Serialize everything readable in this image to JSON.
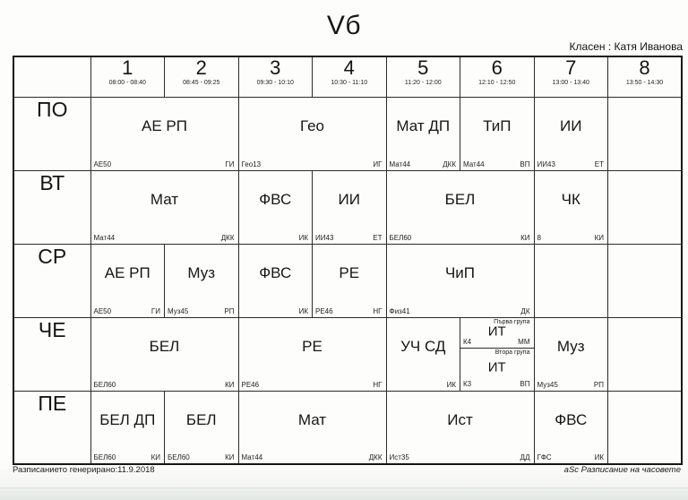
{
  "page": {
    "title": "Vб",
    "class_teacher": "Класен : Катя Иванова",
    "footer_left": "Разписанието генерирано:11.9.2018",
    "footer_right": "aSc Разписание на часовете"
  },
  "colors": {
    "ink": "#1c1c1c",
    "grid_border": "#2b2b2b",
    "paper": "#fdfdfc"
  },
  "periods": [
    {
      "num": "1",
      "time": "08:00 - 08:40"
    },
    {
      "num": "2",
      "time": "08:45 - 09:25"
    },
    {
      "num": "3",
      "time": "09:30 - 10:10"
    },
    {
      "num": "4",
      "time": "10:30 - 11:10"
    },
    {
      "num": "5",
      "time": "11:20 - 12:00"
    },
    {
      "num": "6",
      "time": "12:10 - 12:50"
    },
    {
      "num": "7",
      "time": "13:00 - 13:40"
    },
    {
      "num": "8",
      "time": "13:50 - 14:30"
    }
  ],
  "days": [
    {
      "label": "ПО",
      "cells": [
        {
          "span": 2,
          "subject": "АЕ РП",
          "room": "АЕ50",
          "teacher": "ГИ"
        },
        {
          "span": 2,
          "subject": "Гео",
          "room": "Гео13",
          "teacher": "ИГ"
        },
        {
          "span": 1,
          "subject": "Мат ДП",
          "room": "Мат44",
          "teacher": "ДКК"
        },
        {
          "span": 1,
          "subject": "ТиП",
          "room": "Мат44",
          "teacher": "ВП"
        },
        {
          "span": 1,
          "subject": "ИИ",
          "room": "ИИ43",
          "teacher": "ЕТ"
        },
        {
          "span": 1
        }
      ]
    },
    {
      "label": "ВТ",
      "cells": [
        {
          "span": 2,
          "subject": "Мат",
          "room": "Мат44",
          "teacher": "ДКК"
        },
        {
          "span": 1,
          "subject": "ФВС",
          "room": "",
          "teacher": "ИК"
        },
        {
          "span": 1,
          "subject": "ИИ",
          "room": "ИИ43",
          "teacher": "ЕТ"
        },
        {
          "span": 2,
          "subject": "БЕЛ",
          "room": "БЕЛ60",
          "teacher": "КИ"
        },
        {
          "span": 1,
          "subject": "ЧК",
          "room": "8",
          "teacher": "КИ"
        },
        {
          "span": 1
        }
      ]
    },
    {
      "label": "СР",
      "cells": [
        {
          "span": 1,
          "subject": "АЕ РП",
          "room": "АЕ50",
          "teacher": "ГИ"
        },
        {
          "span": 1,
          "subject": "Муз",
          "room": "Муз45",
          "teacher": "РП"
        },
        {
          "span": 1,
          "subject": "ФВС",
          "room": "",
          "teacher": "ИК"
        },
        {
          "span": 1,
          "subject": "РЕ",
          "room": "РЕ46",
          "teacher": "НГ"
        },
        {
          "span": 2,
          "subject": "ЧиП",
          "room": "Физ41",
          "teacher": "ДК"
        },
        {
          "span": 1
        },
        {
          "span": 1
        }
      ]
    },
    {
      "label": "ЧЕ",
      "cells": [
        {
          "span": 2,
          "subject": "БЕЛ",
          "room": "БЕЛ60",
          "teacher": "КИ"
        },
        {
          "span": 2,
          "subject": "РЕ",
          "room": "РЕ46",
          "teacher": "НГ"
        },
        {
          "span": 1,
          "subject": "УЧ СД",
          "room": "",
          "teacher": "ИК"
        },
        {
          "span": 1,
          "groups": [
            {
              "group": "Първа група",
              "subject": "ИТ",
              "room": "К4",
              "teacher": "ММ"
            },
            {
              "group": "Втора група",
              "subject": "ИТ",
              "room": "К3",
              "teacher": "ВП"
            }
          ]
        },
        {
          "span": 1,
          "subject": "Муз",
          "room": "Муз45",
          "teacher": "РП"
        },
        {
          "span": 1
        }
      ]
    },
    {
      "label": "ПЕ",
      "cells": [
        {
          "span": 1,
          "subject": "БЕЛ ДП",
          "room": "БЕЛ60",
          "teacher": "КИ"
        },
        {
          "span": 1,
          "subject": "БЕЛ",
          "room": "БЕЛ60",
          "teacher": "КИ"
        },
        {
          "span": 2,
          "subject": "Мат",
          "room": "Мат44",
          "teacher": "ДКК"
        },
        {
          "span": 2,
          "subject": "Ист",
          "room": "Ист35",
          "teacher": "ДД"
        },
        {
          "span": 1,
          "subject": "ФВС",
          "room": "ГФС",
          "teacher": "ИК"
        },
        {
          "span": 1
        }
      ]
    }
  ]
}
